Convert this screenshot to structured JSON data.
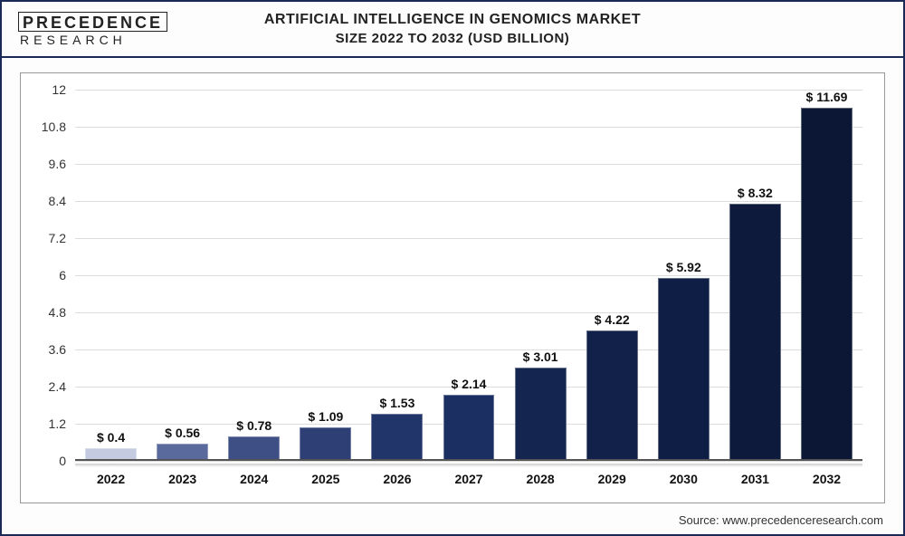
{
  "logo": {
    "top": "PRECEDENCE",
    "bottom": "RESEARCH"
  },
  "title": {
    "line1": "ARTIFICIAL INTELLIGENCE IN GENOMICS MARKET",
    "line2": "SIZE 2022 TO 2032 (USD BILLION)"
  },
  "chart": {
    "type": "bar",
    "categories": [
      "2022",
      "2023",
      "2024",
      "2025",
      "2026",
      "2027",
      "2028",
      "2029",
      "2030",
      "2031",
      "2032"
    ],
    "values": [
      0.4,
      0.56,
      0.78,
      1.09,
      1.53,
      2.14,
      3.01,
      4.22,
      5.92,
      8.32,
      11.69
    ],
    "value_labels": [
      "$ 0.4",
      "$ 0.56",
      "$ 0.78",
      "$ 1.09",
      "$ 1.53",
      "$ 2.14",
      "$ 3.01",
      "$ 4.22",
      "$ 5.92",
      "$ 8.32",
      "$ 11.69"
    ],
    "bar_colors": [
      "#c4cbe0",
      "#5a6a9c",
      "#3e4f85",
      "#2d3f75",
      "#22356b",
      "#1b2f63",
      "#142650",
      "#112149",
      "#0f1e44",
      "#0d1a3c",
      "#0b1734"
    ],
    "ymin": 0,
    "ymax": 12,
    "ytick_step": 1.2,
    "yticks": [
      0,
      1.2,
      2.4,
      3.6,
      4.8,
      6,
      7.2,
      8.4,
      9.6,
      10.8,
      12
    ],
    "grid_color": "#dcdcdc",
    "background_color": "#ffffff",
    "label_fontsize": 14,
    "title_fontsize": 16,
    "bar_width": 0.72
  },
  "source": "Source: www.precedenceresearch.com"
}
